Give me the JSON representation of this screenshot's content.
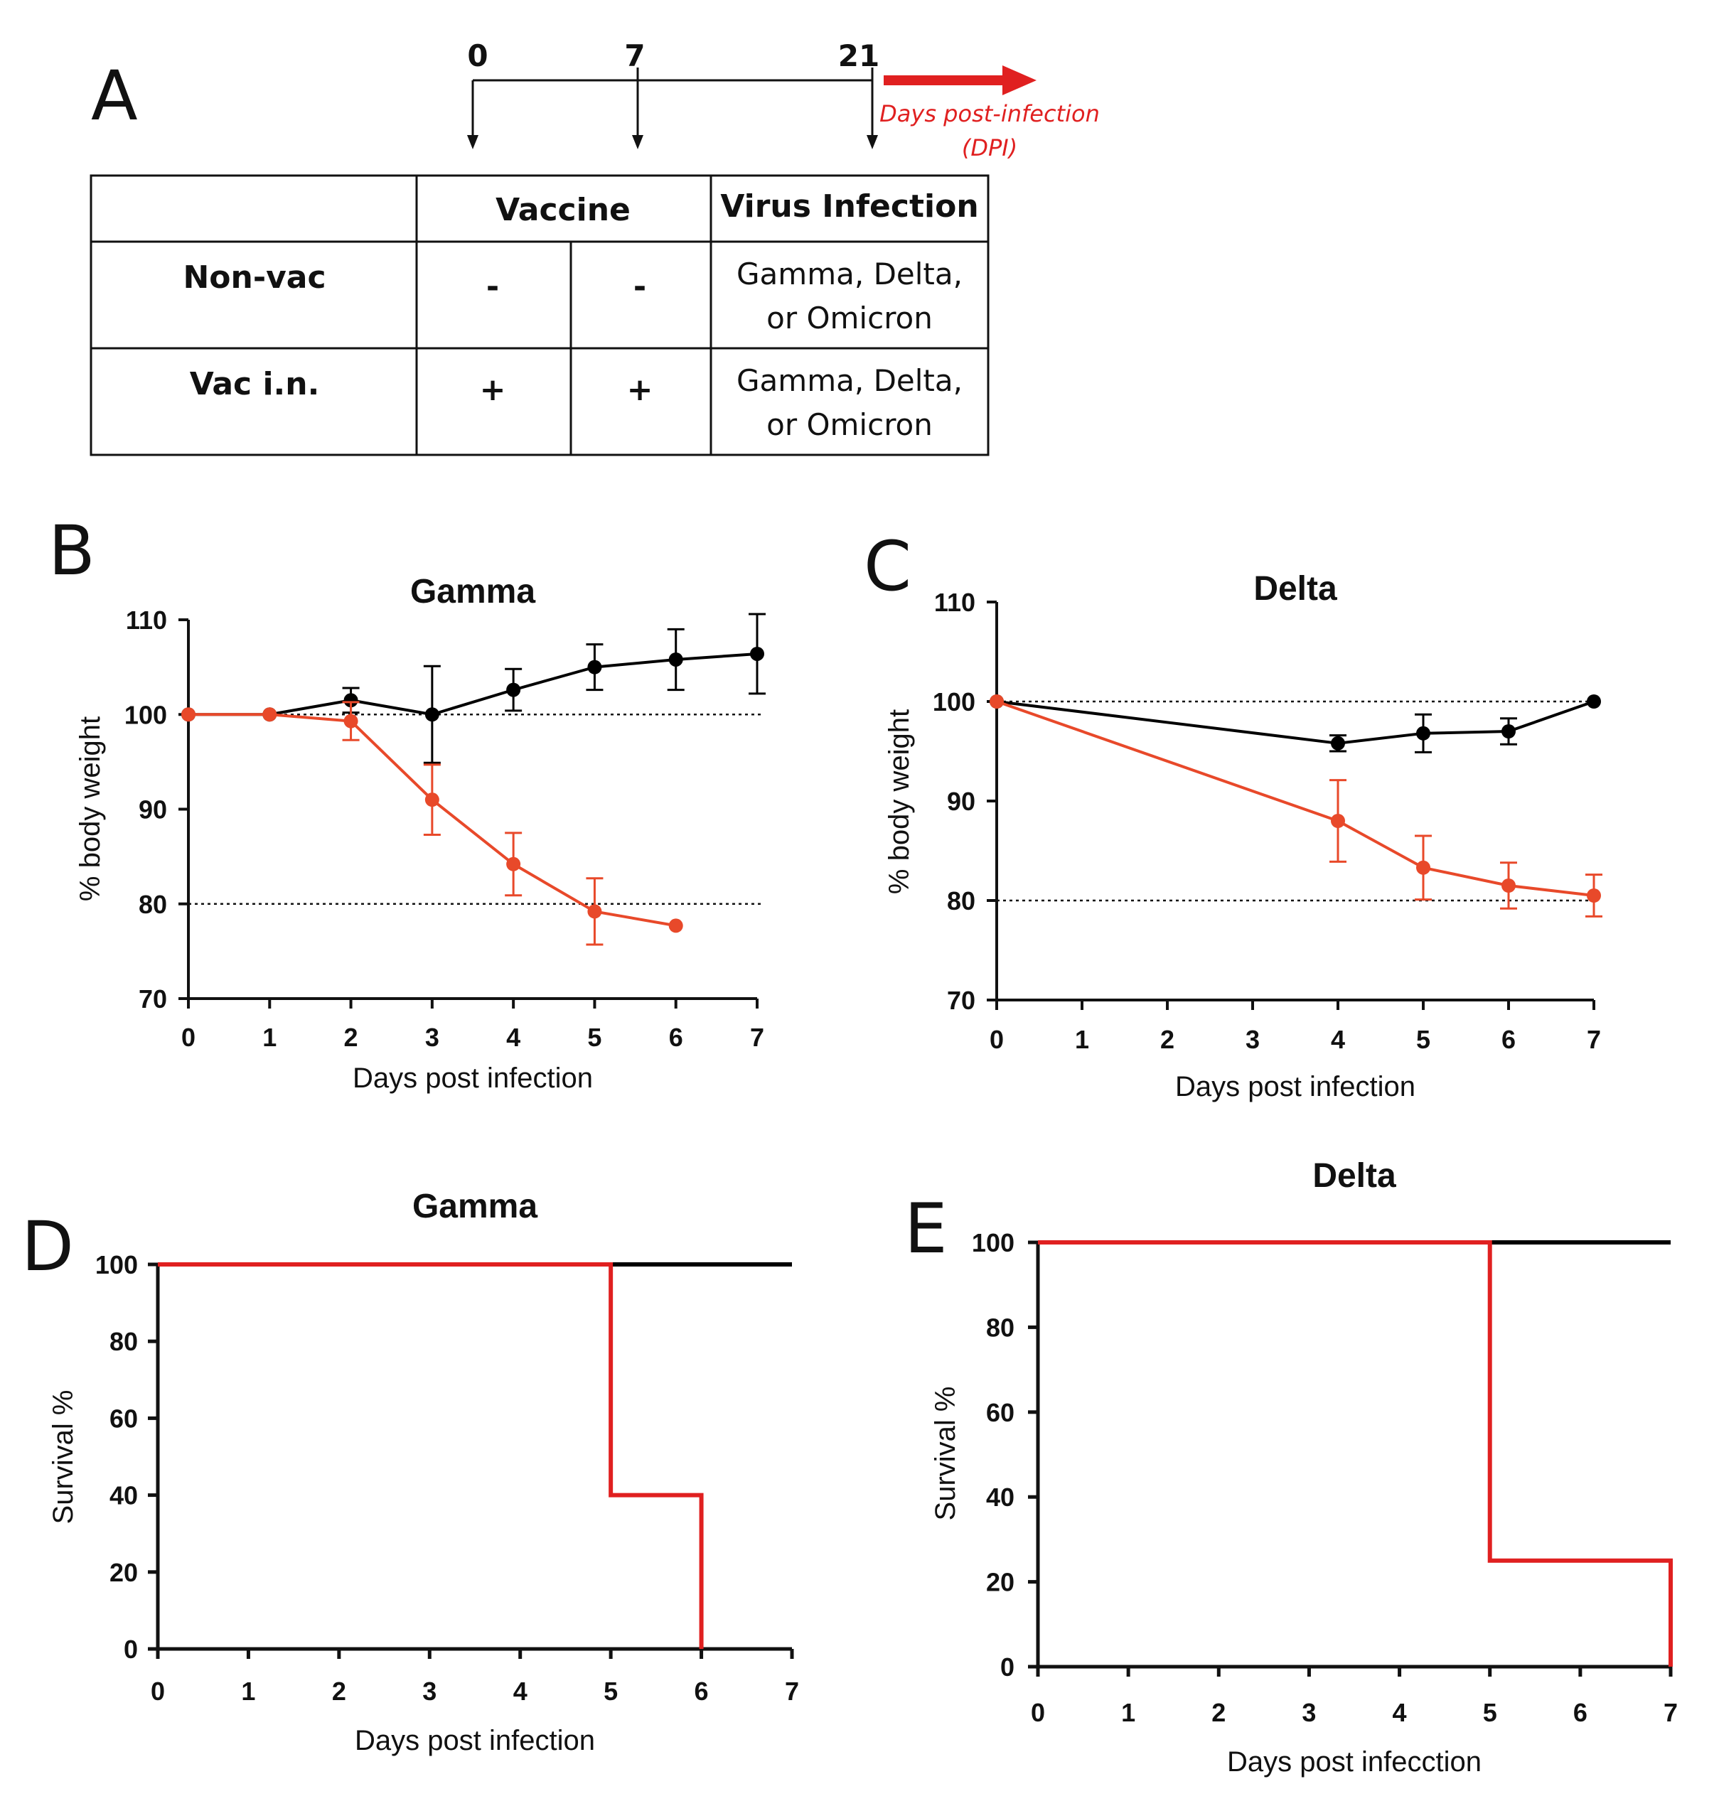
{
  "colors": {
    "red": "#e8492a",
    "red_survival": "#e02020",
    "black": "#000000"
  },
  "panel_a": {
    "letter": "A",
    "timeline": {
      "days": [
        "0",
        "7",
        "21"
      ],
      "arrow_label_line1": "Days post-infection",
      "arrow_label_line2": "(DPI)"
    },
    "table": {
      "header_vaccine": "Vaccine",
      "header_virus": "Virus Infection",
      "rows": [
        {
          "group": "Non-vac",
          "dose1": "-",
          "dose2": "-",
          "virus_line1": "Gamma, Delta,",
          "virus_line2": "or Omicron"
        },
        {
          "group": "Vac i.n.",
          "dose1": "+",
          "dose2": "+",
          "virus_line1": "Gamma, Delta,",
          "virus_line2": "or Omicron"
        }
      ]
    }
  },
  "chart_data": [
    {
      "id": "B",
      "letter": "B",
      "type": "line",
      "title": "Gamma",
      "xlabel": "Days post infection",
      "ylabel": "% body weight",
      "xlim": [
        0,
        7
      ],
      "ylim": [
        70,
        110
      ],
      "xticks": [
        0,
        1,
        2,
        3,
        4,
        5,
        6,
        7
      ],
      "yticks": [
        70,
        80,
        90,
        100,
        110
      ],
      "reference_lines": [
        100,
        80
      ],
      "series": [
        {
          "name": "Vac i.n.",
          "color": "#000000",
          "x": [
            0,
            1,
            2,
            3,
            4,
            5,
            6,
            7
          ],
          "y": [
            100,
            100,
            101.5,
            100,
            102.6,
            105,
            105.8,
            106.4
          ],
          "err": [
            0,
            0,
            1.3,
            5.1,
            2.2,
            2.4,
            3.2,
            4.2
          ]
        },
        {
          "name": "Non-vac",
          "color": "#e8492a",
          "x": [
            0,
            1,
            2,
            3,
            4,
            5,
            6
          ],
          "y": [
            100,
            100,
            99.3,
            91,
            84.2,
            79.2,
            77.7
          ],
          "err": [
            0,
            0,
            2,
            3.7,
            3.3,
            3.5,
            0
          ]
        }
      ]
    },
    {
      "id": "C",
      "letter": "C",
      "type": "line",
      "title": "Delta",
      "xlabel": "Days post infection",
      "ylabel": "% body weight",
      "xlim": [
        0,
        7
      ],
      "ylim": [
        70,
        110
      ],
      "xticks": [
        0,
        1,
        2,
        3,
        4,
        5,
        6,
        7
      ],
      "yticks": [
        70,
        80,
        90,
        100,
        110
      ],
      "reference_lines": [
        100,
        80
      ],
      "series": [
        {
          "name": "Vac i.n.",
          "color": "#000000",
          "x": [
            0,
            4,
            5,
            6,
            7
          ],
          "y": [
            100,
            95.8,
            96.8,
            97,
            100
          ],
          "err": [
            0,
            0.8,
            1.9,
            1.3,
            0
          ]
        },
        {
          "name": "Non-vac",
          "color": "#e8492a",
          "x": [
            0,
            4,
            5,
            6,
            7
          ],
          "y": [
            100,
            88,
            83.3,
            81.5,
            80.5
          ],
          "err": [
            0,
            4.1,
            3.2,
            2.3,
            2.1
          ]
        }
      ]
    },
    {
      "id": "D",
      "letter": "D",
      "type": "step",
      "title": "Gamma",
      "xlabel": "Days post  infection",
      "ylabel": "Survival %",
      "xlim": [
        0,
        7
      ],
      "ylim": [
        0,
        100
      ],
      "xticks": [
        0,
        1,
        2,
        3,
        4,
        5,
        6,
        7
      ],
      "yticks": [
        0,
        20,
        40,
        60,
        80,
        100
      ],
      "series": [
        {
          "name": "Vac i.n.",
          "color": "#000000",
          "x": [
            0,
            7
          ],
          "y": [
            100,
            100
          ]
        },
        {
          "name": "Non-vac",
          "color": "#e02020",
          "x": [
            0,
            5,
            6
          ],
          "y": [
            100,
            40,
            0
          ]
        }
      ]
    },
    {
      "id": "E",
      "letter": "E",
      "type": "step",
      "title": "Delta",
      "xlabel": "Days post infecction",
      "ylabel": "Survival %",
      "xlim": [
        0,
        7
      ],
      "ylim": [
        0,
        100
      ],
      "xticks": [
        0,
        1,
        2,
        3,
        4,
        5,
        6,
        7
      ],
      "yticks": [
        0,
        20,
        40,
        60,
        80,
        100
      ],
      "series": [
        {
          "name": "Vac i.n.",
          "color": "#000000",
          "x": [
            0,
            7
          ],
          "y": [
            100,
            100
          ]
        },
        {
          "name": "Non-vac",
          "color": "#e02020",
          "x": [
            0,
            5,
            7
          ],
          "y": [
            100,
            25,
            0
          ]
        }
      ]
    }
  ]
}
